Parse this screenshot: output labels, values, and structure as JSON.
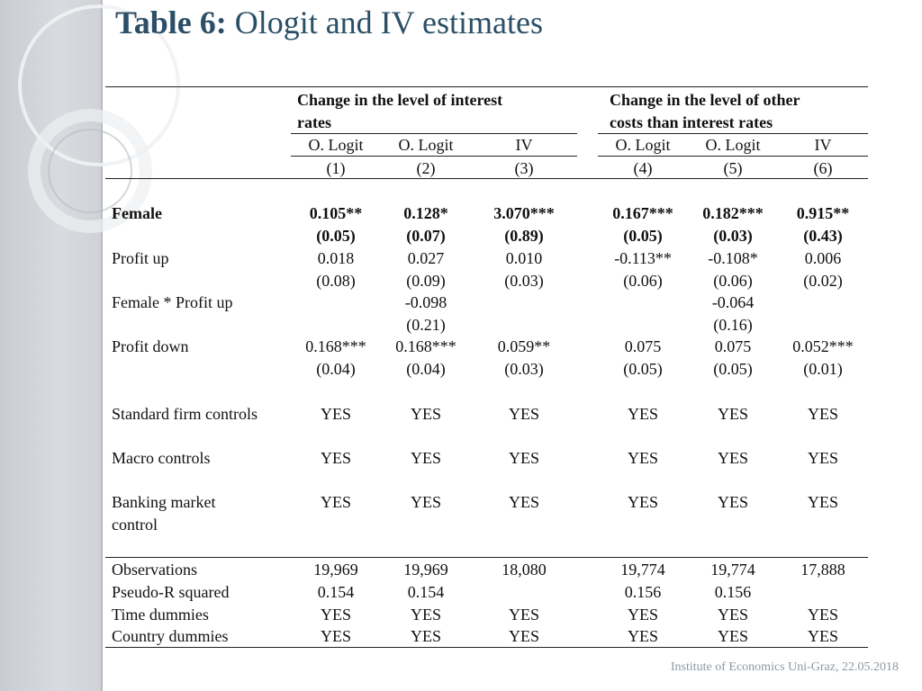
{
  "title": {
    "bold": "Table 6:",
    "rest": "Ologit and IV estimates"
  },
  "footer": "Institute of Economics Uni-Graz, 22.05.2018",
  "groups": [
    {
      "line1": "Change in the level of interest",
      "line2": "rates"
    },
    {
      "line1": "Change in the level of other",
      "line2": "costs than interest rates"
    }
  ],
  "methods": [
    "O. Logit",
    "O. Logit",
    "IV",
    "O. Logit",
    "O. Logit",
    "IV"
  ],
  "col_numbers": [
    "(1)",
    "(2)",
    "(3)",
    "(4)",
    "(5)",
    "(6)"
  ],
  "rows": [
    {
      "label": "Female",
      "bold": true,
      "values": [
        "0.105**",
        "0.128*",
        "3.070***",
        "0.167***",
        "0.182***",
        "0.915**"
      ],
      "se": [
        "(0.05)",
        "(0.07)",
        "(0.89)",
        "(0.05)",
        "(0.03)",
        "(0.43)"
      ]
    },
    {
      "label": "Profit up",
      "bold": false,
      "values": [
        "0.018",
        "0.027",
        "0.010",
        "-0.113**",
        "-0.108*",
        "0.006"
      ],
      "se": [
        "(0.08)",
        "(0.09)",
        "(0.03)",
        "(0.06)",
        "(0.06)",
        "(0.02)"
      ]
    },
    {
      "label": "Female * Profit up",
      "bold": false,
      "values": [
        "",
        "-0.098",
        "",
        "",
        "-0.064",
        ""
      ],
      "se": [
        "",
        "(0.21)",
        "",
        "",
        "(0.16)",
        ""
      ]
    },
    {
      "label": "Profit down",
      "bold": false,
      "values": [
        "0.168***",
        "0.168***",
        "0.059**",
        "0.075",
        "0.075",
        "0.052***"
      ],
      "se": [
        "(0.04)",
        "(0.04)",
        "(0.03)",
        "(0.05)",
        "(0.05)",
        "(0.01)"
      ]
    }
  ],
  "controls": [
    {
      "label": "Standard firm controls",
      "label2": "",
      "values": [
        "YES",
        "YES",
        "YES",
        "YES",
        "YES",
        "YES"
      ]
    },
    {
      "label": "Macro controls",
      "label2": "",
      "values": [
        "YES",
        "YES",
        "YES",
        "YES",
        "YES",
        "YES"
      ]
    },
    {
      "label": "Banking market",
      "label2": "control",
      "values": [
        "YES",
        "YES",
        "YES",
        "YES",
        "YES",
        "YES"
      ]
    }
  ],
  "stats": [
    {
      "label": "Observations",
      "values": [
        "19,969",
        "19,969",
        "18,080",
        "19,774",
        "19,774",
        "17,888"
      ]
    },
    {
      "label": "Pseudo-R squared",
      "values": [
        "0.154",
        "0.154",
        "",
        "0.156",
        "0.156",
        ""
      ]
    },
    {
      "label": "Time dummies",
      "values": [
        "YES",
        "YES",
        "YES",
        "YES",
        "YES",
        "YES"
      ]
    },
    {
      "label": "Country dummies",
      "values": [
        "YES",
        "YES",
        "YES",
        "YES",
        "YES",
        "YES"
      ]
    }
  ]
}
